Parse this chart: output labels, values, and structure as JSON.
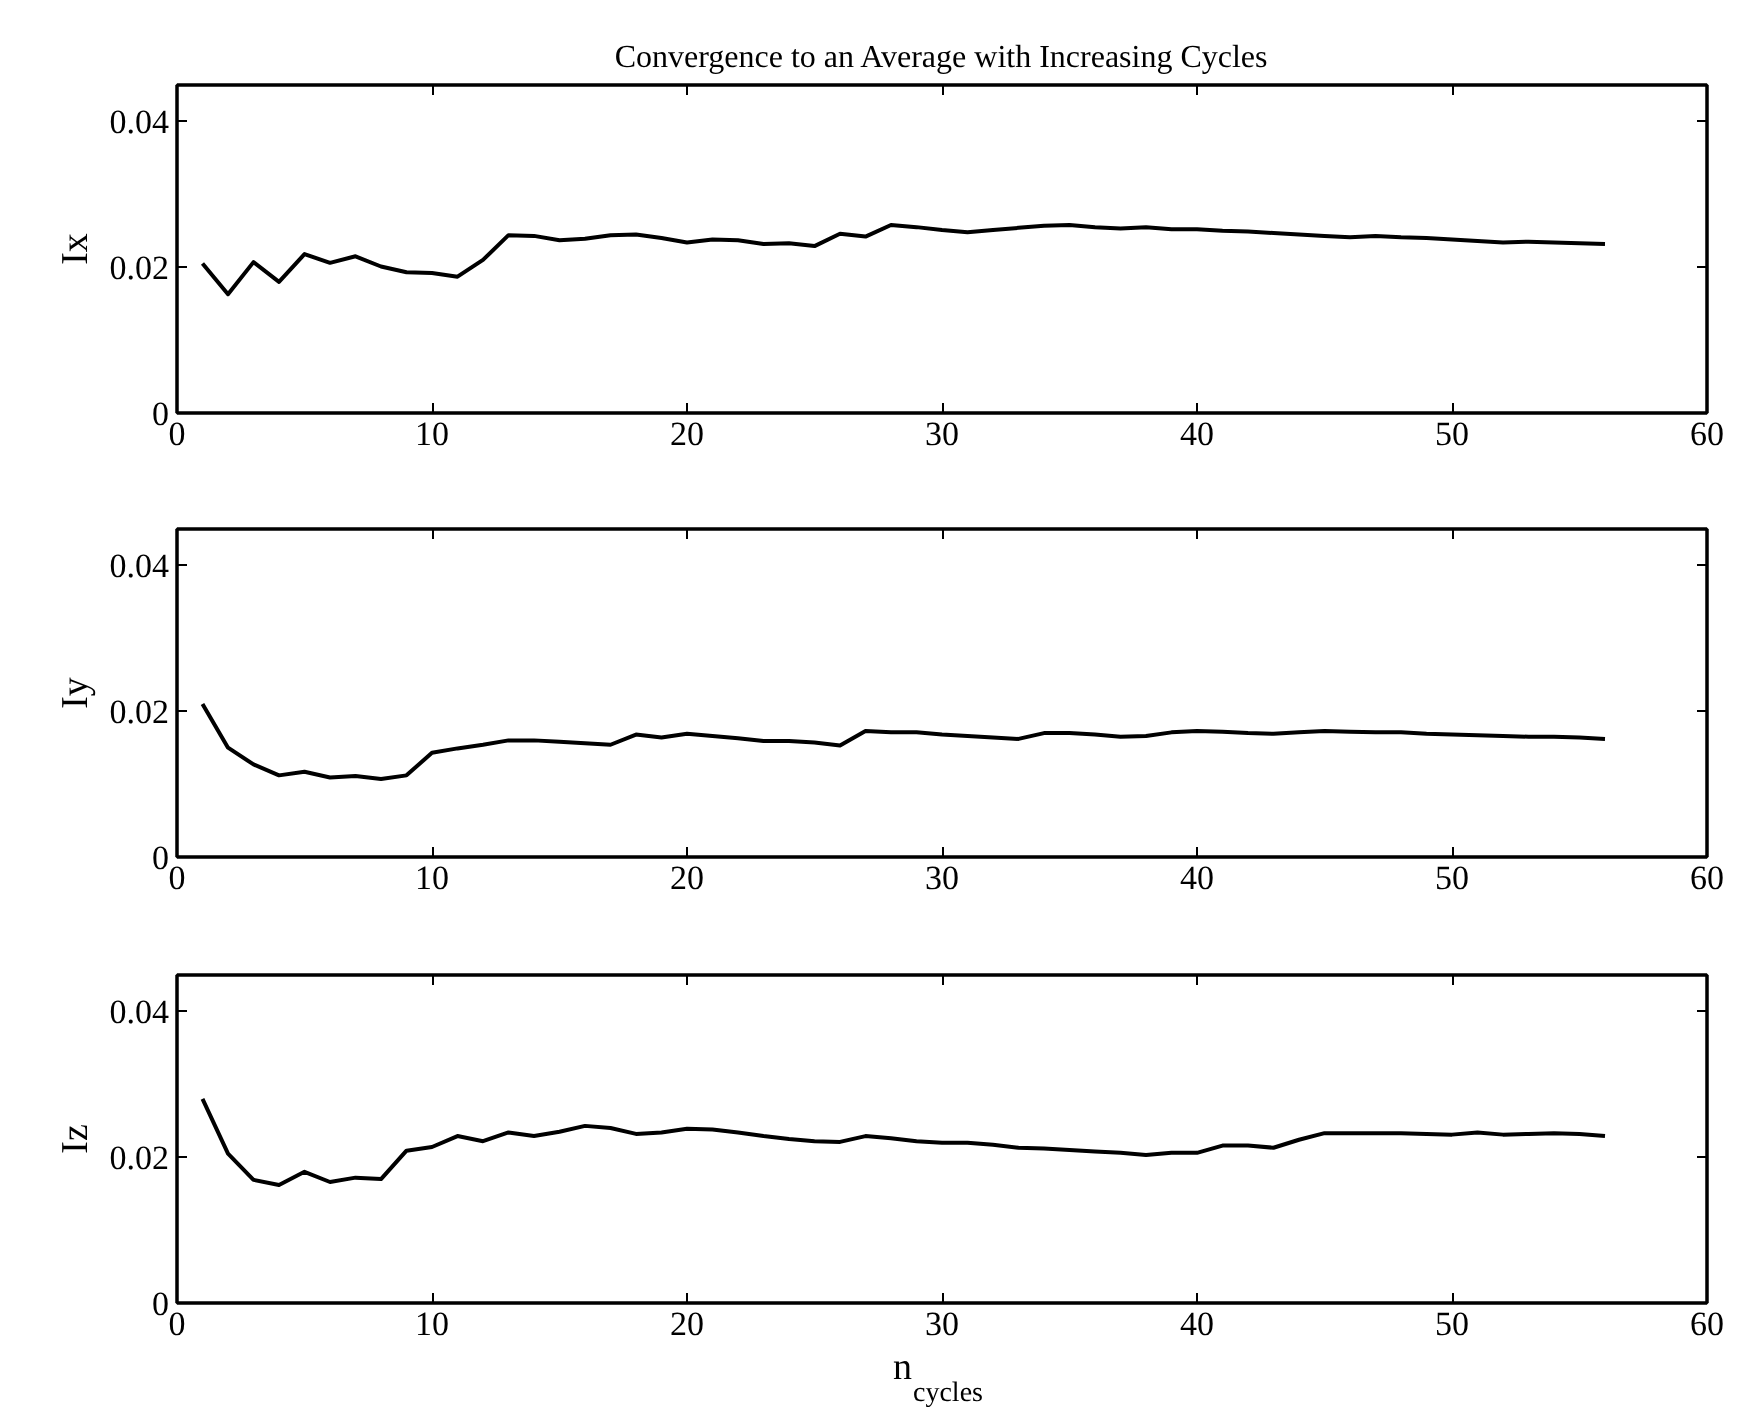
{
  "chart_data": [
    {
      "type": "line",
      "title": "Convergence to an Average with Increasing Cycles",
      "ylabel": "Ix",
      "xlim": [
        0,
        60
      ],
      "xticks": [
        0,
        10,
        20,
        30,
        40,
        50,
        60
      ],
      "ylim": [
        0,
        0.045
      ],
      "yticks": [
        0,
        0.02,
        0.04
      ],
      "grid": false,
      "marker": "none",
      "line_style": "solid",
      "x": [
        1,
        2,
        3,
        4,
        5,
        6,
        7,
        8,
        9,
        10,
        11,
        12,
        13,
        14,
        15,
        16,
        17,
        18,
        19,
        20,
        21,
        22,
        23,
        24,
        25,
        26,
        27,
        28,
        29,
        30,
        31,
        32,
        33,
        34,
        35,
        36,
        37,
        38,
        39,
        40,
        41,
        42,
        43,
        44,
        45,
        46,
        47,
        48,
        49,
        50,
        51,
        52,
        53,
        54,
        55,
        56
      ],
      "series": [
        {
          "color": "#000000",
          "values": [
            0.0205,
            0.0163,
            0.0207,
            0.018,
            0.0218,
            0.0206,
            0.0215,
            0.0201,
            0.0193,
            0.0192,
            0.0187,
            0.021,
            0.0244,
            0.0243,
            0.0237,
            0.0239,
            0.0244,
            0.0245,
            0.024,
            0.0234,
            0.0238,
            0.0237,
            0.0232,
            0.0233,
            0.0229,
            0.0246,
            0.0242,
            0.0258,
            0.0255,
            0.0251,
            0.0248,
            0.0251,
            0.0254,
            0.0257,
            0.0258,
            0.0255,
            0.0253,
            0.0255,
            0.0252,
            0.0252,
            0.025,
            0.0249,
            0.0247,
            0.0245,
            0.0243,
            0.0241,
            0.0243,
            0.0241,
            0.024,
            0.0238,
            0.0236,
            0.0234,
            0.0235,
            0.0234,
            0.0233,
            0.0232
          ]
        }
      ]
    },
    {
      "type": "line",
      "ylabel": "Iy",
      "xlim": [
        0,
        60
      ],
      "xticks": [
        0,
        10,
        20,
        30,
        40,
        50,
        60
      ],
      "ylim": [
        0,
        0.045
      ],
      "yticks": [
        0,
        0.02,
        0.04
      ],
      "grid": false,
      "marker": "none",
      "line_style": "solid",
      "x": [
        1,
        2,
        3,
        4,
        5,
        6,
        7,
        8,
        9,
        10,
        11,
        12,
        13,
        14,
        15,
        16,
        17,
        18,
        19,
        20,
        21,
        22,
        23,
        24,
        25,
        26,
        27,
        28,
        29,
        30,
        31,
        32,
        33,
        34,
        35,
        36,
        37,
        38,
        39,
        40,
        41,
        42,
        43,
        44,
        45,
        46,
        47,
        48,
        49,
        50,
        51,
        52,
        53,
        54,
        55,
        56
      ],
      "series": [
        {
          "color": "#000000",
          "values": [
            0.021,
            0.015,
            0.0127,
            0.0112,
            0.0117,
            0.0109,
            0.0111,
            0.0107,
            0.0112,
            0.0143,
            0.0149,
            0.0154,
            0.016,
            0.016,
            0.0158,
            0.0156,
            0.0154,
            0.0168,
            0.0164,
            0.0169,
            0.0166,
            0.0163,
            0.0159,
            0.0159,
            0.0157,
            0.0153,
            0.0173,
            0.0171,
            0.0171,
            0.0168,
            0.0166,
            0.0164,
            0.0162,
            0.017,
            0.017,
            0.0168,
            0.0165,
            0.0166,
            0.0171,
            0.0173,
            0.0172,
            0.017,
            0.0169,
            0.0171,
            0.0173,
            0.0172,
            0.0171,
            0.0171,
            0.0169,
            0.0168,
            0.0167,
            0.0166,
            0.0165,
            0.0165,
            0.0164,
            0.0162
          ]
        }
      ]
    },
    {
      "type": "line",
      "ylabel": "Iz",
      "xlabel": "n$_{cycles}$",
      "xlim": [
        0,
        60
      ],
      "xticks": [
        0,
        10,
        20,
        30,
        40,
        50,
        60
      ],
      "ylim": [
        0,
        0.045
      ],
      "yticks": [
        0,
        0.02,
        0.04
      ],
      "grid": false,
      "marker": "none",
      "line_style": "solid",
      "x": [
        1,
        2,
        3,
        4,
        5,
        6,
        7,
        8,
        9,
        10,
        11,
        12,
        13,
        14,
        15,
        16,
        17,
        18,
        19,
        20,
        21,
        22,
        23,
        24,
        25,
        26,
        27,
        28,
        29,
        30,
        31,
        32,
        33,
        34,
        35,
        36,
        37,
        38,
        39,
        40,
        41,
        42,
        43,
        44,
        45,
        46,
        47,
        48,
        49,
        50,
        51,
        52,
        53,
        54,
        55,
        56
      ],
      "series": [
        {
          "color": "#000000",
          "values": [
            0.028,
            0.0205,
            0.0169,
            0.0162,
            0.018,
            0.0166,
            0.0172,
            0.017,
            0.0209,
            0.0214,
            0.0229,
            0.0222,
            0.0234,
            0.0229,
            0.0235,
            0.0243,
            0.024,
            0.0232,
            0.0234,
            0.0239,
            0.0238,
            0.0234,
            0.0229,
            0.0225,
            0.0222,
            0.0221,
            0.0229,
            0.0226,
            0.0222,
            0.022,
            0.022,
            0.0217,
            0.0213,
            0.0212,
            0.021,
            0.0208,
            0.0206,
            0.0203,
            0.0206,
            0.0206,
            0.0216,
            0.0216,
            0.0213,
            0.0224,
            0.0233,
            0.0233,
            0.0233,
            0.0233,
            0.0232,
            0.0231,
            0.0234,
            0.0231,
            0.0232,
            0.0233,
            0.0232,
            0.0229
          ]
        }
      ]
    }
  ]
}
